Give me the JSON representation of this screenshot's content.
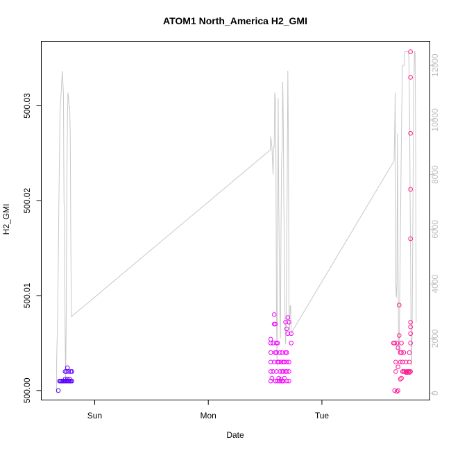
{
  "chart_data": {
    "type": "scatter",
    "title": "ATOM1 North_America H2_GMI",
    "xlabel": "Date",
    "ylabel": "H2_GMI",
    "x_unit": "day",
    "x_ticks": [
      {
        "label": "Sun",
        "value": 1.0
      },
      {
        "label": "Mon",
        "value": 2.0
      },
      {
        "label": "Tue",
        "value": 3.0
      }
    ],
    "xlim": [
      0.53,
      3.95
    ],
    "ylim": [
      499.999,
      500.0368
    ],
    "y_ticks": [
      500.0,
      500.01,
      500.02,
      500.03
    ],
    "y_tick_labels": [
      "500.00",
      "500.01",
      "500.02",
      "500.03"
    ],
    "y2lim": [
      -250,
      12880
    ],
    "y2_ticks": [
      0,
      2000,
      4000,
      6000,
      8000,
      10000,
      12000
    ],
    "y2_tick_labels": [
      "0",
      "2000",
      "4000",
      "6000",
      "8000",
      "10000",
      "12000"
    ],
    "grid": false,
    "colors": {
      "line": "#c8c8c8",
      "right_axis": "#bdbdbd",
      "point_start": "#5500ff",
      "point_end": "#ff1a8c"
    },
    "series": [
      {
        "kind": "points",
        "axis": "left",
        "marker": "open-circle",
        "color_gradient": [
          "#5500ff",
          "#aa00ff",
          "#ff00ff",
          "#ff1a8c"
        ],
        "points": [
          [
            0.68,
            500.0
          ],
          [
            0.69,
            500.001
          ],
          [
            0.7,
            500.001
          ],
          [
            0.71,
            500.001
          ],
          [
            0.72,
            500.001
          ],
          [
            0.73,
            500.001
          ],
          [
            0.74,
            500.001
          ],
          [
            0.74,
            500.0012
          ],
          [
            0.74,
            500.002
          ],
          [
            0.75,
            500.001
          ],
          [
            0.75,
            500.002
          ],
          [
            0.76,
            500.001
          ],
          [
            0.76,
            500.0012
          ],
          [
            0.76,
            500.0024
          ],
          [
            0.77,
            500.001
          ],
          [
            0.77,
            500.002
          ],
          [
            0.78,
            500.001
          ],
          [
            0.78,
            500.0012
          ],
          [
            0.79,
            500.001
          ],
          [
            0.79,
            500.002
          ],
          [
            0.8,
            500.001
          ],
          [
            0.8,
            500.002
          ],
          [
            2.55,
            500.001
          ],
          [
            2.55,
            500.002
          ],
          [
            2.55,
            500.003
          ],
          [
            2.55,
            500.004
          ],
          [
            2.55,
            500.005
          ],
          [
            2.55,
            500.0054
          ],
          [
            2.56,
            500.0013
          ],
          [
            2.57,
            500.002
          ],
          [
            2.57,
            500.005
          ],
          [
            2.58,
            500.003
          ],
          [
            2.58,
            500.007
          ],
          [
            2.58,
            500.008
          ],
          [
            2.59,
            500.001
          ],
          [
            2.59,
            500.004
          ],
          [
            2.59,
            500.007
          ],
          [
            2.6,
            500.002
          ],
          [
            2.6,
            500.004
          ],
          [
            2.6,
            500.005
          ],
          [
            2.61,
            500.001
          ],
          [
            2.61,
            500.003
          ],
          [
            2.61,
            500.005
          ],
          [
            2.62,
            500.0013
          ],
          [
            2.62,
            500.003
          ],
          [
            2.63,
            500.001
          ],
          [
            2.63,
            500.002
          ],
          [
            2.63,
            500.004
          ],
          [
            2.64,
            500.003
          ],
          [
            2.64,
            500.0012
          ],
          [
            2.65,
            500.001
          ],
          [
            2.65,
            500.002
          ],
          [
            2.65,
            500.004
          ],
          [
            2.66,
            500.001
          ],
          [
            2.66,
            500.002
          ],
          [
            2.66,
            500.003
          ],
          [
            2.67,
            500.0013
          ],
          [
            2.67,
            500.003
          ],
          [
            2.68,
            500.002
          ],
          [
            2.68,
            500.004
          ],
          [
            2.68,
            500.0072
          ],
          [
            2.69,
            500.001
          ],
          [
            2.69,
            500.002
          ],
          [
            2.69,
            500.003
          ],
          [
            2.69,
            500.004
          ],
          [
            2.69,
            500.0065
          ],
          [
            2.7,
            500.0077
          ],
          [
            2.7,
            500.006
          ],
          [
            2.71,
            500.001
          ],
          [
            2.71,
            500.002
          ],
          [
            2.71,
            500.003
          ],
          [
            2.71,
            500.0072
          ],
          [
            2.73,
            500.005
          ],
          [
            2.73,
            500.006
          ],
          [
            3.63,
            500.005
          ],
          [
            3.64,
            500.005
          ],
          [
            3.64,
            500.0
          ],
          [
            3.65,
            500.002
          ],
          [
            3.65,
            500.003
          ],
          [
            3.66,
            500.005
          ],
          [
            3.66,
            499.9999
          ],
          [
            3.67,
            500.0
          ],
          [
            3.67,
            500.0045
          ],
          [
            3.67,
            500.0025
          ],
          [
            3.68,
            500.0058
          ],
          [
            3.68,
            500.009
          ],
          [
            3.69,
            500.004
          ],
          [
            3.69,
            500.003
          ],
          [
            3.69,
            500.0012
          ],
          [
            3.7,
            500.004
          ],
          [
            3.7,
            500.0013
          ],
          [
            3.7,
            500.005
          ],
          [
            3.71,
            500.002
          ],
          [
            3.71,
            500.003
          ],
          [
            3.72,
            500.002
          ],
          [
            3.72,
            500.004
          ],
          [
            3.73,
            500.002
          ],
          [
            3.74,
            500.0019
          ],
          [
            3.74,
            500.003
          ],
          [
            3.75,
            500.002
          ],
          [
            3.75,
            500.0019
          ],
          [
            3.76,
            500.002
          ],
          [
            3.77,
            500.002
          ],
          [
            3.77,
            500.0019
          ],
          [
            3.77,
            500.003
          ],
          [
            3.77,
            500.004
          ],
          [
            3.78,
            500.002
          ],
          [
            3.78,
            500.005
          ],
          [
            3.78,
            500.006
          ],
          [
            3.78,
            500.0067
          ],
          [
            3.78,
            500.0072
          ],
          [
            3.78,
            500.016
          ],
          [
            3.78,
            500.0212
          ],
          [
            3.78,
            500.0271
          ],
          [
            3.78,
            500.033
          ],
          [
            3.78,
            500.0357
          ]
        ]
      },
      {
        "kind": "line",
        "axis": "right",
        "color": "#c8c8c8",
        "points": [
          [
            0.665,
            0
          ],
          [
            0.665,
            1200
          ],
          [
            0.675,
            3000
          ],
          [
            0.685,
            7000
          ],
          [
            0.695,
            10300
          ],
          [
            0.705,
            11000
          ],
          [
            0.715,
            11800
          ],
          [
            0.725,
            11000
          ],
          [
            0.73,
            7000
          ],
          [
            0.735,
            6500
          ],
          [
            0.74,
            2000
          ],
          [
            0.745,
            500
          ],
          [
            0.75,
            3000
          ],
          [
            0.755,
            7500
          ],
          [
            0.76,
            10000
          ],
          [
            0.765,
            11000
          ],
          [
            0.77,
            10800
          ],
          [
            0.775,
            10500
          ],
          [
            0.78,
            10500
          ],
          [
            0.785,
            9500
          ],
          [
            0.79,
            5500
          ],
          [
            0.795,
            2800
          ],
          [
            2.545,
            8900
          ],
          [
            2.545,
            9000
          ],
          [
            2.55,
            9400
          ],
          [
            2.56,
            9000
          ],
          [
            2.57,
            8000
          ],
          [
            2.575,
            9000
          ],
          [
            2.58,
            9000
          ],
          [
            2.585,
            11000
          ],
          [
            2.59,
            10800
          ],
          [
            2.595,
            9000
          ],
          [
            2.6,
            3000
          ],
          [
            2.605,
            1000
          ],
          [
            2.61,
            5000
          ],
          [
            2.615,
            10800
          ],
          [
            2.62,
            7000
          ],
          [
            2.625,
            5000
          ],
          [
            2.63,
            3000
          ],
          [
            2.635,
            2000
          ],
          [
            2.64,
            6000
          ],
          [
            2.645,
            8500
          ],
          [
            2.65,
            9000
          ],
          [
            2.655,
            11400
          ],
          [
            2.66,
            10000
          ],
          [
            2.665,
            7000
          ],
          [
            2.67,
            5000
          ],
          [
            2.675,
            3000
          ],
          [
            2.68,
            1800
          ],
          [
            2.685,
            2500
          ],
          [
            2.69,
            5000
          ],
          [
            2.695,
            8000
          ],
          [
            2.7,
            11800
          ],
          [
            2.705,
            9500
          ],
          [
            2.71,
            3200
          ],
          [
            2.715,
            2200
          ],
          [
            2.72,
            3200
          ],
          [
            2.725,
            3200
          ],
          [
            2.73,
            2200
          ],
          [
            3.635,
            8500
          ],
          [
            3.64,
            9500
          ],
          [
            3.645,
            11000
          ],
          [
            3.65,
            4000
          ],
          [
            3.655,
            3500
          ],
          [
            3.66,
            4000
          ],
          [
            3.665,
            9500
          ],
          [
            3.67,
            5000
          ],
          [
            3.675,
            1500
          ],
          [
            3.68,
            1500
          ],
          [
            3.69,
            5500
          ],
          [
            3.7,
            9500
          ],
          [
            3.705,
            11000
          ],
          [
            3.71,
            12000
          ],
          [
            3.715,
            12000
          ],
          [
            3.72,
            12000
          ],
          [
            3.725,
            12000
          ],
          [
            3.73,
            12500
          ],
          [
            3.735,
            12500
          ],
          [
            3.74,
            12500
          ],
          [
            3.745,
            12500
          ],
          [
            3.75,
            12500
          ],
          [
            3.755,
            12500
          ],
          [
            3.76,
            12500
          ],
          [
            3.765,
            12300
          ],
          [
            3.77,
            11000
          ],
          [
            3.775,
            8000
          ],
          [
            3.78,
            5000
          ],
          [
            3.785,
            2000
          ],
          [
            3.79,
            1000
          ],
          [
            3.795,
            3000
          ],
          [
            3.8,
            6000
          ],
          [
            3.805,
            9500
          ],
          [
            3.81,
            11500
          ],
          [
            3.815,
            12500
          ],
          [
            3.82,
            12500
          ],
          [
            3.825,
            9500
          ],
          [
            3.83,
            2600
          ]
        ]
      }
    ]
  }
}
